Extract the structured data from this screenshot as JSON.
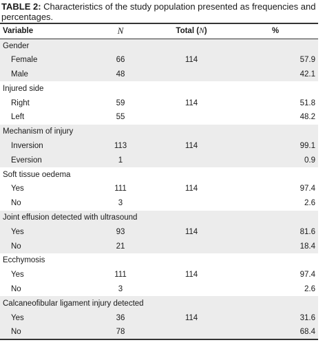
{
  "caption": {
    "label": "TABLE 2:",
    "text": " Characteristics of the study population presented as frequencies and percentages."
  },
  "header": {
    "variable": "Variable",
    "n": "N",
    "total_prefix": "Total (",
    "total_n": "N",
    "total_suffix": ")",
    "percent": "%"
  },
  "groups": [
    {
      "title": "Gender",
      "rows": [
        {
          "label": "Female",
          "n": "66",
          "total": "114",
          "pct": "57.9"
        },
        {
          "label": "Male",
          "n": "48",
          "total": "",
          "pct": "42.1"
        }
      ]
    },
    {
      "title": "Injured side",
      "rows": [
        {
          "label": "Right",
          "n": "59",
          "total": "114",
          "pct": "51.8"
        },
        {
          "label": "Left",
          "n": "55",
          "total": "",
          "pct": "48.2"
        }
      ]
    },
    {
      "title": "Mechanism of injury",
      "rows": [
        {
          "label": "Inversion",
          "n": "113",
          "total": "114",
          "pct": "99.1"
        },
        {
          "label": "Eversion",
          "n": "1",
          "total": "",
          "pct": "0.9"
        }
      ]
    },
    {
      "title": "Soft tissue oedema",
      "rows": [
        {
          "label": "Yes",
          "n": "111",
          "total": "114",
          "pct": "97.4"
        },
        {
          "label": "No",
          "n": "3",
          "total": "",
          "pct": "2.6"
        }
      ]
    },
    {
      "title": "Joint effusion detected with ultrasound",
      "rows": [
        {
          "label": "Yes",
          "n": "93",
          "total": "114",
          "pct": "81.6"
        },
        {
          "label": "No",
          "n": "21",
          "total": "",
          "pct": "18.4"
        }
      ]
    },
    {
      "title": "Ecchymosis",
      "rows": [
        {
          "label": "Yes",
          "n": "111",
          "total": "114",
          "pct": "97.4"
        },
        {
          "label": "No",
          "n": "3",
          "total": "",
          "pct": "2.6"
        }
      ]
    },
    {
      "title": "Calcaneofibular ligament injury detected",
      "rows": [
        {
          "label": "Yes",
          "n": "36",
          "total": "114",
          "pct": "31.6"
        },
        {
          "label": "No",
          "n": "78",
          "total": "",
          "pct": "68.4"
        }
      ]
    }
  ],
  "colors": {
    "shade": "#ececec",
    "rule": "#333333"
  }
}
